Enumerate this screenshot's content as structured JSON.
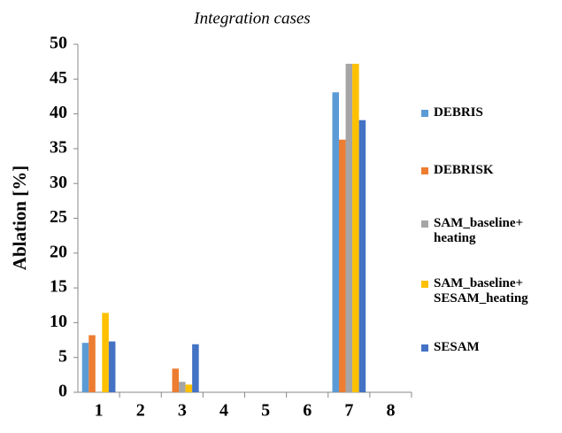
{
  "chart_data": {
    "type": "bar",
    "title": "Integration cases",
    "y_label": "Ablation [%]",
    "categories": [
      "1",
      "2",
      "3",
      "4",
      "5",
      "6",
      "7",
      "8"
    ],
    "series": [
      {
        "name": "DEBRIS",
        "color": "#5b9bd5",
        "values": [
          7.1,
          0,
          0,
          0,
          0,
          0,
          43.1,
          0
        ]
      },
      {
        "name": "DEBRISK",
        "color": "#ed7d31",
        "values": [
          8.2,
          0,
          3.4,
          0,
          0,
          0,
          36.3,
          0
        ]
      },
      {
        "name": "SAM_baseline+ heating",
        "color": "#a5a5a5",
        "values": [
          0,
          0,
          1.5,
          0,
          0,
          0,
          47.2,
          0
        ]
      },
      {
        "name": "SAM_baseline+ SESAM_heating",
        "color": "#ffc000",
        "values": [
          11.4,
          0,
          1.1,
          0,
          0,
          0,
          47.2,
          0
        ]
      },
      {
        "name": "SESAM",
        "color": "#4472c4",
        "values": [
          7.3,
          0,
          6.9,
          0,
          0,
          0,
          39.1,
          0
        ]
      }
    ],
    "ylim": [
      0,
      50
    ],
    "yticks": [
      0,
      5,
      10,
      15,
      20,
      25,
      30,
      35,
      40,
      45,
      50
    ],
    "legend": "right"
  }
}
